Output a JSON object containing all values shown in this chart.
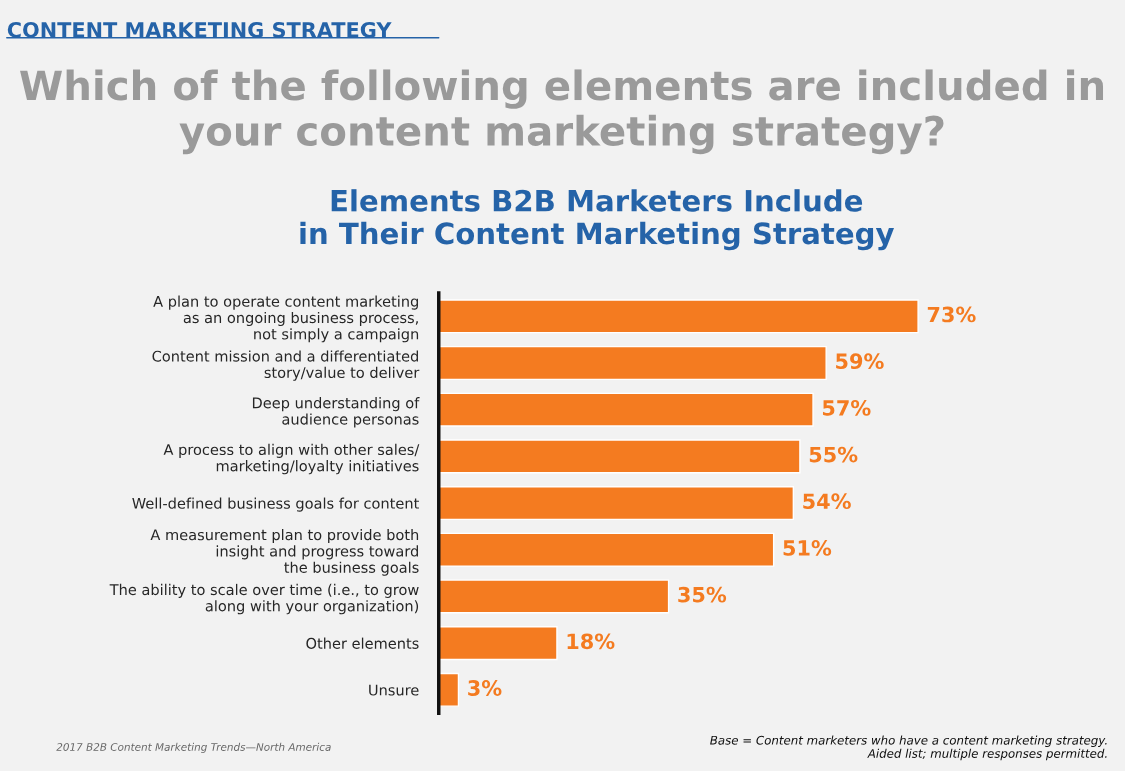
{
  "chart_data": {
    "type": "bar",
    "orientation": "horizontal",
    "title": "Which of the following elements are included in\nyour content marketing strategy?",
    "subtitle": "Elements B2B Marketers Include\nin Their Content Marketing Strategy",
    "categories": [
      "A plan to operate content marketing\nas an ongoing business process,\nnot simply a campaign",
      "Content mission and a differentiated\nstory/value to deliver",
      "Deep understanding of\naudience personas",
      "A process to align with other sales/\nmarketing/loyalty initiatives",
      "Well-defined business goals for content",
      "A measurement plan to provide both\ninsight and progress toward\nthe business goals",
      "The ability to scale over time (i.e., to grow\nalong with your organization)",
      "Other elements",
      "Unsure"
    ],
    "values": [
      73,
      59,
      57,
      55,
      54,
      51,
      35,
      18,
      3
    ],
    "value_labels": [
      "73%",
      "59%",
      "57%",
      "55%",
      "54%",
      "51%",
      "35%",
      "18%",
      "3%"
    ],
    "color": "#f47b20",
    "tick_labels": "y",
    "grid": false,
    "legend": false,
    "annotations": [
      "CONTENT MARKETING STRATEGY",
      "2017 B2B Content Marketing Trends—North America",
      "Base = Content marketers who have a content marketing strategy.\nAided list; multiple responses permitted."
    ]
  }
}
